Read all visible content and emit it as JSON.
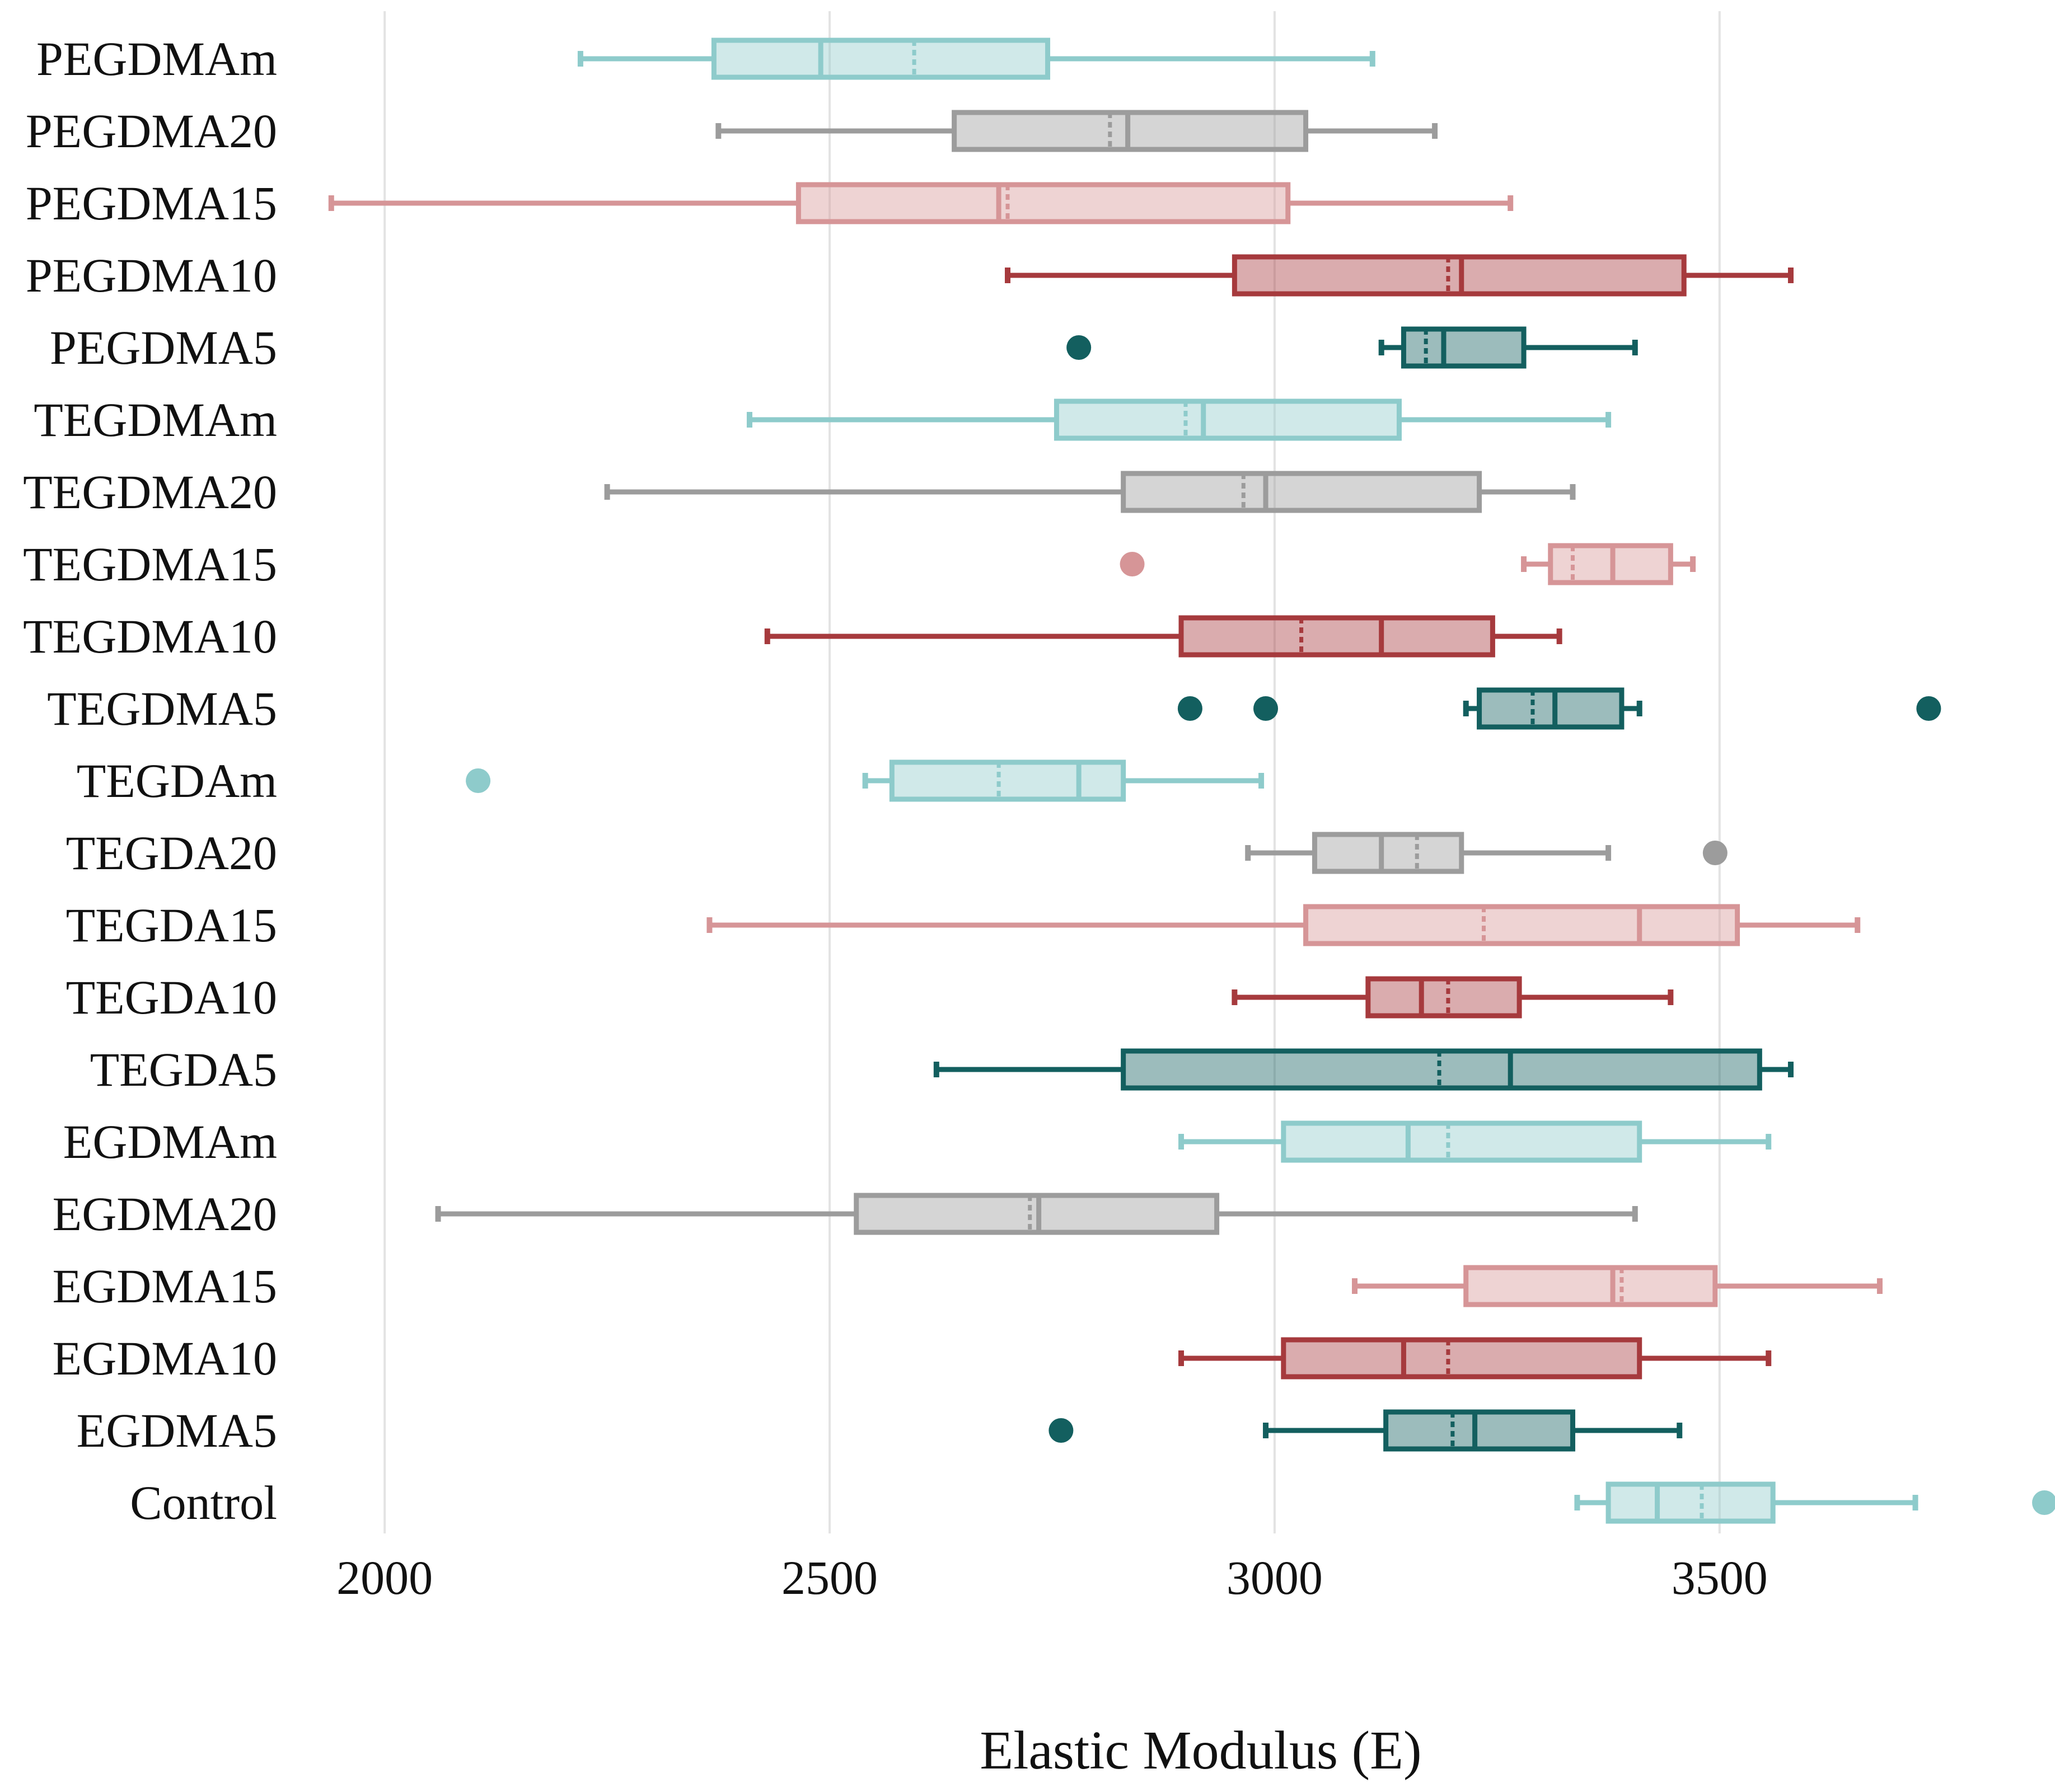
{
  "chart_data": {
    "type": "boxplot",
    "orientation": "horizontal",
    "title": "",
    "xlabel": "Elastic Modulus (E)",
    "ylabel": "",
    "xlim": [
      1920,
      3870
    ],
    "xticks": [
      2000,
      2500,
      3000,
      3500
    ],
    "grid": "vertical",
    "legend": "none",
    "colors": {
      "m": "#8ecbcb",
      "20": "#9c9c9c",
      "15": "#d69597",
      "10": "#a63a3d",
      "5": "#135f5f",
      "control": "#8ecbcb"
    },
    "categories": [
      "PEGDMAm",
      "PEGDMA20",
      "PEGDMA15",
      "PEGDMA10",
      "PEGDMA5",
      "TEGDMAm",
      "TEGDMA20",
      "TEGDMA15",
      "TEGDMA10",
      "TEGDMA5",
      "TEGDAm",
      "TEGDA20",
      "TEGDA15",
      "TEGDA10",
      "TEGDA5",
      "EGDMAm",
      "EGDMA20",
      "EGDMA15",
      "EGDMA10",
      "EGDMA5",
      "Control"
    ],
    "boxes": [
      {
        "label": "PEGDMAm",
        "color_key": "m",
        "min": 2220,
        "q1": 2370,
        "median": 2490,
        "mean": 2595,
        "q3": 2745,
        "max": 3110,
        "outliers": []
      },
      {
        "label": "PEGDMA20",
        "color_key": "20",
        "min": 2375,
        "q1": 2640,
        "median": 2835,
        "mean": 2815,
        "q3": 3035,
        "max": 3180,
        "outliers": []
      },
      {
        "label": "PEGDMA15",
        "color_key": "15",
        "min": 1940,
        "q1": 2465,
        "median": 2690,
        "mean": 2700,
        "q3": 3015,
        "max": 3265,
        "outliers": []
      },
      {
        "label": "PEGDMA10",
        "color_key": "10",
        "min": 2700,
        "q1": 2955,
        "median": 3210,
        "mean": 3195,
        "q3": 3460,
        "max": 3580,
        "outliers": []
      },
      {
        "label": "PEGDMA5",
        "color_key": "5",
        "min": 3120,
        "q1": 3145,
        "median": 3190,
        "mean": 3170,
        "q3": 3280,
        "max": 3405,
        "outliers": [
          2780
        ]
      },
      {
        "label": "TEGDMAm",
        "color_key": "m",
        "min": 2410,
        "q1": 2755,
        "median": 2920,
        "mean": 2900,
        "q3": 3140,
        "max": 3375,
        "outliers": []
      },
      {
        "label": "TEGDMA20",
        "color_key": "20",
        "min": 2250,
        "q1": 2830,
        "median": 2990,
        "mean": 2965,
        "q3": 3230,
        "max": 3335,
        "outliers": []
      },
      {
        "label": "TEGDMA15",
        "color_key": "15",
        "min": 3280,
        "q1": 3310,
        "median": 3380,
        "mean": 3335,
        "q3": 3445,
        "max": 3470,
        "outliers": [
          2840
        ]
      },
      {
        "label": "TEGDMA10",
        "color_key": "10",
        "min": 2430,
        "q1": 2895,
        "median": 3120,
        "mean": 3030,
        "q3": 3245,
        "max": 3320,
        "outliers": []
      },
      {
        "label": "TEGDMA5",
        "color_key": "5",
        "min": 3215,
        "q1": 3230,
        "median": 3315,
        "mean": 3290,
        "q3": 3390,
        "max": 3410,
        "outliers": [
          2905,
          2990,
          3735
        ]
      },
      {
        "label": "TEGDAm",
        "color_key": "m",
        "min": 2540,
        "q1": 2570,
        "median": 2780,
        "mean": 2690,
        "q3": 2830,
        "max": 2985,
        "outliers": [
          2105
        ]
      },
      {
        "label": "TEGDA20",
        "color_key": "20",
        "min": 2970,
        "q1": 3045,
        "median": 3120,
        "mean": 3160,
        "q3": 3210,
        "max": 3375,
        "outliers": [
          3495
        ]
      },
      {
        "label": "TEGDA15",
        "color_key": "15",
        "min": 2365,
        "q1": 3035,
        "median": 3410,
        "mean": 3235,
        "q3": 3520,
        "max": 3655,
        "outliers": []
      },
      {
        "label": "TEGDA10",
        "color_key": "10",
        "min": 2955,
        "q1": 3105,
        "median": 3165,
        "mean": 3195,
        "q3": 3275,
        "max": 3445,
        "outliers": []
      },
      {
        "label": "TEGDA5",
        "color_key": "5",
        "min": 2620,
        "q1": 2830,
        "median": 3265,
        "mean": 3185,
        "q3": 3545,
        "max": 3580,
        "outliers": []
      },
      {
        "label": "EGDMAm",
        "color_key": "m",
        "min": 2895,
        "q1": 3010,
        "median": 3150,
        "mean": 3195,
        "q3": 3410,
        "max": 3555,
        "outliers": []
      },
      {
        "label": "EGDMA20",
        "color_key": "20",
        "min": 2060,
        "q1": 2530,
        "median": 2735,
        "mean": 2725,
        "q3": 2935,
        "max": 3405,
        "outliers": []
      },
      {
        "label": "EGDMA15",
        "color_key": "15",
        "min": 3090,
        "q1": 3215,
        "median": 3380,
        "mean": 3390,
        "q3": 3495,
        "max": 3680,
        "outliers": []
      },
      {
        "label": "EGDMA10",
        "color_key": "10",
        "min": 2895,
        "q1": 3010,
        "median": 3145,
        "mean": 3195,
        "q3": 3410,
        "max": 3555,
        "outliers": []
      },
      {
        "label": "EGDMA5",
        "color_key": "5",
        "min": 2990,
        "q1": 3125,
        "median": 3225,
        "mean": 3200,
        "q3": 3335,
        "max": 3455,
        "outliers": [
          2760
        ]
      },
      {
        "label": "Control",
        "color_key": "control",
        "min": 3340,
        "q1": 3375,
        "median": 3430,
        "mean": 3480,
        "q3": 3560,
        "max": 3720,
        "outliers": [
          3865
        ]
      }
    ]
  }
}
